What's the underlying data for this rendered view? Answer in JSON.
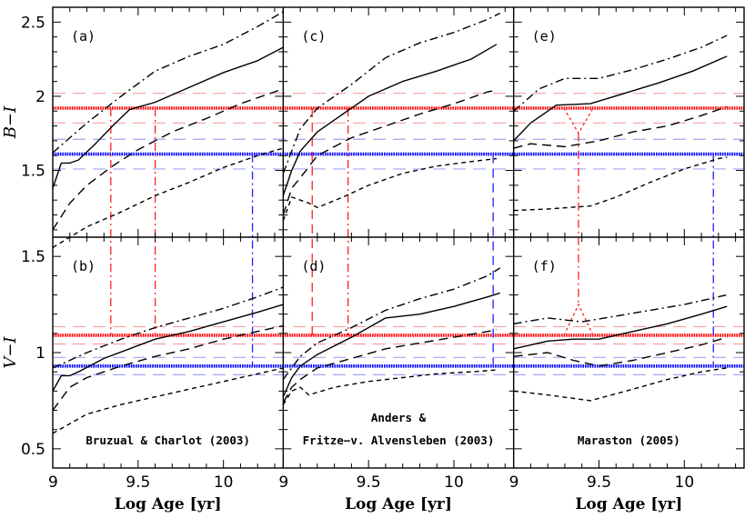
{
  "chart_data": {
    "type": "line",
    "xlabel": "Log Age [yr]",
    "xlim": [
      9.0,
      10.35
    ],
    "x_ticks": [
      "9",
      "9.5",
      "10"
    ],
    "rows": [
      {
        "ylabel": "B−I",
        "ylim": [
          1.05,
          2.6
        ],
        "y_ticks": [
          "1.5",
          "2",
          "2.5"
        ]
      },
      {
        "ylabel": "V−I",
        "ylim": [
          0.4,
          1.6
        ],
        "y_ticks": [
          "0.5",
          "1",
          "1.5"
        ]
      }
    ],
    "columns": [
      {
        "label_lines": [
          "Bruzual & Charlot (2003)"
        ]
      },
      {
        "label_lines": [
          "Anders &",
          "Fritze−v. Alvensleben (2003)"
        ]
      },
      {
        "label_lines": [
          "Maraston (2005)"
        ]
      }
    ],
    "observed": {
      "red": {
        "BI": 1.92,
        "BI_err": 0.1,
        "VI": 1.09,
        "VI_err": 0.045,
        "color": "#ff0000"
      },
      "blue": {
        "BI": 1.61,
        "BI_err": 0.1,
        "VI": 0.93,
        "VI_err": 0.045,
        "color": "#0000ff"
      }
    },
    "panels": [
      {
        "id": "(a)",
        "row": 0,
        "col": 0,
        "series": [
          {
            "name": "dot-dash",
            "dash": "9,4,2,4",
            "x": [
              9.0,
              9.2,
              9.4,
              9.6,
              9.8,
              10.0,
              10.2,
              10.35
            ],
            "y": [
              1.62,
              1.82,
              2.0,
              2.17,
              2.27,
              2.35,
              2.47,
              2.57
            ]
          },
          {
            "name": "solid",
            "dash": "",
            "x": [
              9.0,
              9.05,
              9.1,
              9.15,
              9.25,
              9.35,
              9.45,
              9.6,
              9.8,
              10.0,
              10.2,
              10.35
            ],
            "y": [
              1.38,
              1.55,
              1.55,
              1.57,
              1.68,
              1.8,
              1.91,
              1.96,
              2.06,
              2.16,
              2.24,
              2.33
            ]
          },
          {
            "name": "long-dash",
            "dash": "10,6",
            "x": [
              9.0,
              9.1,
              9.2,
              9.35,
              9.5,
              9.7,
              9.9,
              10.1,
              10.35
            ],
            "y": [
              1.1,
              1.28,
              1.4,
              1.53,
              1.64,
              1.76,
              1.85,
              1.95,
              2.05
            ]
          },
          {
            "name": "short-dash",
            "dash": "5,4",
            "x": [
              9.0,
              9.2,
              9.4,
              9.6,
              9.8,
              10.0,
              10.2,
              10.35
            ],
            "y": [
              0.98,
              1.12,
              1.22,
              1.33,
              1.42,
              1.52,
              1.6,
              1.65
            ]
          }
        ]
      },
      {
        "id": "(b)",
        "row": 1,
        "col": 0,
        "series": [
          {
            "name": "dot-dash",
            "dash": "9,4,2,4",
            "x": [
              9.0,
              9.2,
              9.4,
              9.6,
              9.8,
              10.0,
              10.2,
              10.35
            ],
            "y": [
              0.92,
              1.0,
              1.07,
              1.13,
              1.18,
              1.23,
              1.29,
              1.34
            ]
          },
          {
            "name": "solid",
            "dash": "",
            "x": [
              9.0,
              9.05,
              9.1,
              9.15,
              9.3,
              9.45,
              9.6,
              9.8,
              10.0,
              10.2,
              10.35
            ],
            "y": [
              0.8,
              0.88,
              0.88,
              0.9,
              0.97,
              1.02,
              1.07,
              1.11,
              1.16,
              1.21,
              1.25
            ]
          },
          {
            "name": "long-dash",
            "dash": "10,6",
            "x": [
              9.0,
              9.1,
              9.2,
              9.4,
              9.6,
              9.8,
              10.0,
              10.2,
              10.35
            ],
            "y": [
              0.7,
              0.82,
              0.87,
              0.93,
              0.98,
              1.02,
              1.07,
              1.11,
              1.14
            ]
          },
          {
            "name": "short-dash",
            "dash": "5,4",
            "x": [
              9.0,
              9.2,
              9.4,
              9.6,
              9.8,
              10.0,
              10.2,
              10.35
            ],
            "y": [
              0.58,
              0.68,
              0.73,
              0.77,
              0.81,
              0.85,
              0.89,
              0.92
            ]
          }
        ]
      },
      {
        "id": "(c)",
        "row": 0,
        "col": 1,
        "series": [
          {
            "name": "dot-dash",
            "dash": "9,4,2,4",
            "x": [
              9.0,
              9.1,
              9.2,
              9.4,
              9.6,
              9.8,
              10.0,
              10.2,
              10.27
            ],
            "y": [
              1.48,
              1.78,
              1.92,
              2.08,
              2.26,
              2.36,
              2.43,
              2.52,
              2.56
            ]
          },
          {
            "name": "solid",
            "dash": "",
            "x": [
              9.0,
              9.05,
              9.1,
              9.2,
              9.35,
              9.5,
              9.7,
              9.9,
              10.1,
              10.25
            ],
            "y": [
              1.33,
              1.5,
              1.63,
              1.76,
              1.88,
              2.0,
              2.1,
              2.17,
              2.25,
              2.35
            ]
          },
          {
            "name": "long-dash",
            "dash": "10,6",
            "x": [
              9.0,
              9.05,
              9.1,
              9.2,
              9.4,
              9.6,
              9.8,
              10.0,
              10.2,
              10.25
            ],
            "y": [
              1.2,
              1.38,
              1.45,
              1.6,
              1.72,
              1.8,
              1.88,
              1.95,
              2.03,
              2.04
            ]
          },
          {
            "name": "short-dash",
            "dash": "5,4",
            "x": [
              9.0,
              9.05,
              9.1,
              9.15,
              9.2,
              9.35,
              9.5,
              9.7,
              9.9,
              10.1,
              10.25
            ],
            "y": [
              1.16,
              1.32,
              1.3,
              1.28,
              1.25,
              1.32,
              1.4,
              1.48,
              1.53,
              1.56,
              1.58
            ]
          }
        ]
      },
      {
        "id": "(d)",
        "row": 1,
        "col": 1,
        "series": [
          {
            "name": "dot-dash",
            "dash": "9,4,2,4",
            "x": [
              9.0,
              9.1,
              9.2,
              9.4,
              9.6,
              9.8,
              10.0,
              10.2,
              10.27
            ],
            "y": [
              0.86,
              0.98,
              1.05,
              1.13,
              1.22,
              1.28,
              1.33,
              1.4,
              1.44
            ]
          },
          {
            "name": "solid",
            "dash": "",
            "x": [
              9.0,
              9.05,
              9.1,
              9.2,
              9.4,
              9.6,
              9.8,
              10.0,
              10.2,
              10.27
            ],
            "y": [
              0.77,
              0.87,
              0.93,
              0.99,
              1.08,
              1.18,
              1.2,
              1.24,
              1.29,
              1.31
            ]
          },
          {
            "name": "long-dash",
            "dash": "10,6",
            "x": [
              9.0,
              9.05,
              9.1,
              9.2,
              9.4,
              9.6,
              9.8,
              10.0,
              10.2,
              10.25
            ],
            "y": [
              0.74,
              0.82,
              0.86,
              0.92,
              0.97,
              1.02,
              1.05,
              1.08,
              1.11,
              1.12
            ]
          },
          {
            "name": "short-dash",
            "dash": "5,4",
            "x": [
              9.0,
              9.05,
              9.1,
              9.15,
              9.3,
              9.5,
              9.7,
              9.9,
              10.1,
              10.25
            ],
            "y": [
              0.73,
              0.8,
              0.82,
              0.78,
              0.82,
              0.85,
              0.87,
              0.89,
              0.9,
              0.91
            ]
          }
        ]
      },
      {
        "id": "(e)",
        "row": 0,
        "col": 2,
        "series": [
          {
            "name": "dot-dash",
            "dash": "9,4,2,4",
            "x": [
              9.0,
              9.15,
              9.3,
              9.5,
              9.7,
              9.9,
              10.1,
              10.25
            ],
            "y": [
              1.9,
              2.05,
              2.12,
              2.12,
              2.18,
              2.25,
              2.33,
              2.41
            ]
          },
          {
            "name": "solid",
            "dash": "",
            "x": [
              9.0,
              9.1,
              9.25,
              9.45,
              9.65,
              9.85,
              10.05,
              10.25
            ],
            "y": [
              1.7,
              1.82,
              1.94,
              1.95,
              2.02,
              2.09,
              2.17,
              2.27
            ]
          },
          {
            "name": "long-dash",
            "dash": "10,6",
            "x": [
              9.0,
              9.1,
              9.3,
              9.5,
              9.7,
              9.9,
              10.1,
              10.25
            ],
            "y": [
              1.65,
              1.68,
              1.66,
              1.7,
              1.76,
              1.8,
              1.87,
              1.93
            ]
          },
          {
            "name": "short-dash",
            "dash": "5,4",
            "x": [
              9.0,
              9.2,
              9.45,
              9.6,
              9.8,
              10.0,
              10.2,
              10.25
            ],
            "y": [
              1.23,
              1.24,
              1.26,
              1.32,
              1.42,
              1.51,
              1.58,
              1.59
            ]
          }
        ]
      },
      {
        "id": "(f)",
        "row": 1,
        "col": 2,
        "series": [
          {
            "name": "dot-dash",
            "dash": "9,4,2,4",
            "x": [
              9.0,
              9.2,
              9.4,
              9.6,
              9.8,
              10.0,
              10.2,
              10.25
            ],
            "y": [
              1.15,
              1.18,
              1.16,
              1.19,
              1.22,
              1.25,
              1.29,
              1.3
            ]
          },
          {
            "name": "solid",
            "dash": "",
            "x": [
              9.0,
              9.2,
              9.35,
              9.5,
              9.7,
              9.9,
              10.1,
              10.25
            ],
            "y": [
              1.02,
              1.06,
              1.07,
              1.07,
              1.11,
              1.15,
              1.2,
              1.24
            ]
          },
          {
            "name": "long-dash",
            "dash": "10,6",
            "x": [
              9.0,
              9.2,
              9.35,
              9.5,
              9.7,
              9.9,
              10.1,
              10.25
            ],
            "y": [
              0.98,
              1.0,
              0.96,
              0.93,
              0.96,
              1.0,
              1.04,
              1.08
            ]
          },
          {
            "name": "short-dash",
            "dash": "5,4",
            "x": [
              9.0,
              9.2,
              9.45,
              9.7,
              9.9,
              10.1,
              10.25
            ],
            "y": [
              0.8,
              0.78,
              0.75,
              0.81,
              0.86,
              0.9,
              0.92
            ]
          }
        ]
      }
    ],
    "age_markers": [
      {
        "col": 0,
        "color": "red",
        "style": "dashdot",
        "x": 9.34
      },
      {
        "col": 0,
        "color": "red",
        "style": "dashdot",
        "x": 9.6
      },
      {
        "col": 0,
        "color": "blue",
        "style": "dashdot",
        "x": 10.17
      },
      {
        "col": 1,
        "color": "red",
        "style": "longdash",
        "x": 9.17
      },
      {
        "col": 1,
        "color": "red",
        "style": "dashdot",
        "x": 9.38
      },
      {
        "col": 1,
        "color": "blue",
        "style": "longdash",
        "x": 10.23
      },
      {
        "col": 2,
        "color": "red",
        "style": "dashdot",
        "x": 9.38,
        "fork": true
      },
      {
        "col": 2,
        "color": "blue",
        "style": "dashdot",
        "x": 10.17
      }
    ]
  }
}
